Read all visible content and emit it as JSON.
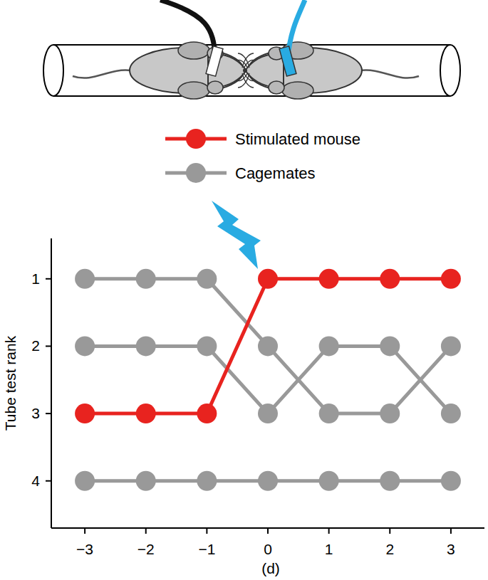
{
  "chart_data": {
    "type": "line",
    "x_label": "(d)",
    "y_label": "Tube test rank",
    "x": [
      -3,
      -2,
      -1,
      0,
      1,
      2,
      3
    ],
    "series": [
      {
        "name": "Stimulated mouse",
        "color": "#e8231f",
        "marker": "circle",
        "values": [
          3,
          3,
          3,
          1,
          1,
          1,
          1
        ]
      },
      {
        "name": "Cagemates",
        "color": "#999999",
        "marker": "circle",
        "values": [
          1,
          1,
          1,
          2,
          3,
          3,
          2
        ]
      },
      {
        "name": "Cagemates",
        "color": "#999999",
        "marker": "circle",
        "values": [
          2,
          2,
          2,
          3,
          2,
          2,
          3
        ]
      },
      {
        "name": "Cagemates",
        "color": "#999999",
        "marker": "circle",
        "values": [
          4,
          4,
          4,
          4,
          4,
          4,
          4
        ]
      }
    ],
    "xlim": [
      -3.55,
      3.55
    ],
    "xticks": [
      -3,
      -2,
      -1,
      0,
      1,
      2,
      3
    ],
    "ylim": [
      4.7,
      0.4
    ],
    "yticks": [
      1,
      2,
      3,
      4
    ],
    "grid": false,
    "legend": "top"
  }
}
